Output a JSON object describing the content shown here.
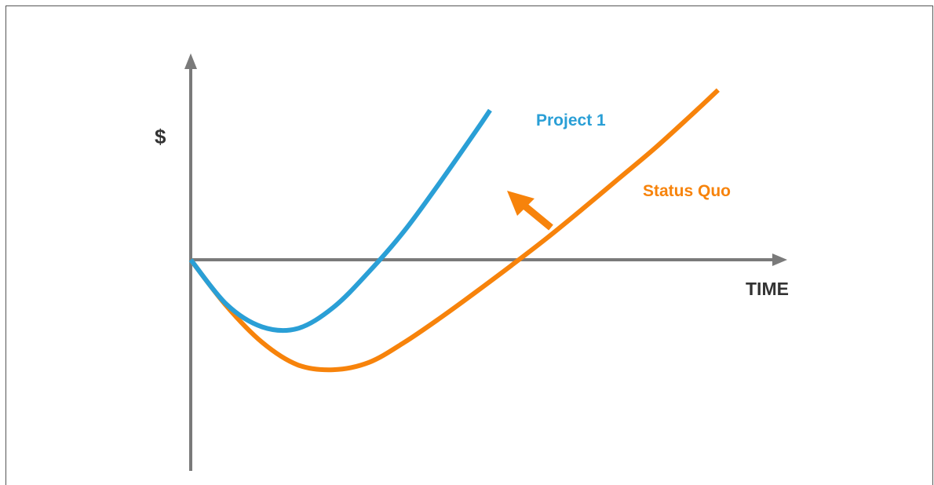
{
  "chart_data": {
    "type": "line",
    "ylabel": "$",
    "xlabel": "TIME",
    "grid": false,
    "legend": "none",
    "series": [
      {
        "name": "Project 1",
        "color": "#2a9fd6",
        "points": [
          [
            0.0,
            0.0
          ],
          [
            0.1,
            -0.55
          ],
          [
            0.2,
            -0.83
          ],
          [
            0.3,
            -0.85
          ],
          [
            0.4,
            -0.59
          ],
          [
            0.5,
            -0.15
          ],
          [
            0.6,
            0.36
          ],
          [
            0.7,
            0.96
          ],
          [
            0.8,
            1.59
          ],
          [
            0.84,
            1.85
          ]
        ]
      },
      {
        "name": "Status Quo",
        "color": "#f7830b",
        "points": [
          [
            0.0,
            0.0
          ],
          [
            0.1,
            -0.57
          ],
          [
            0.2,
            -1.02
          ],
          [
            0.3,
            -1.3
          ],
          [
            0.4,
            -1.36
          ],
          [
            0.5,
            -1.27
          ],
          [
            0.6,
            -1.02
          ],
          [
            0.7,
            -0.72
          ],
          [
            0.8,
            -0.4
          ],
          [
            0.9,
            -0.07
          ],
          [
            1.0,
            0.27
          ],
          [
            1.1,
            0.63
          ],
          [
            1.2,
            1.0
          ],
          [
            1.3,
            1.37
          ],
          [
            1.4,
            1.77
          ],
          [
            1.48,
            2.1
          ]
        ]
      }
    ],
    "annotation": {
      "shape": "arrow",
      "color": "#f7830b",
      "meaning": "Status Quo curve shifting toward Project 1"
    }
  }
}
